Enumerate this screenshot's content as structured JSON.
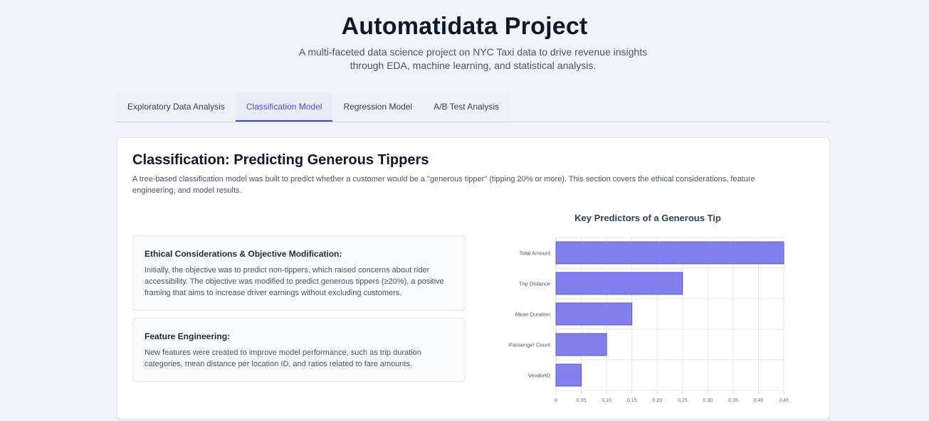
{
  "header": {
    "title": "Automatidata Project",
    "subtitle": "A multi-faceted data science project on NYC Taxi data to drive revenue insights through EDA, machine learning, and statistical analysis."
  },
  "tabs": [
    {
      "label": "Exploratory Data Analysis",
      "active": false
    },
    {
      "label": "Classification Model",
      "active": true
    },
    {
      "label": "Regression Model",
      "active": false
    },
    {
      "label": "A/B Test Analysis",
      "active": false
    }
  ],
  "section": {
    "title": "Classification: Predicting Generous Tippers",
    "description": "A tree-based classification model was built to predict whether a customer would be a \"generous tipper\" (tipping 20% or more). This section covers the ethical considerations, feature engineering, and model results.",
    "boxes": [
      {
        "heading": "Ethical Considerations & Objective Modification:",
        "text": "Initially, the objective was to predict non-tippers, which raised concerns about rider accessibility. The objective was modified to predict generous tippers (≥20%), a positive framing that aims to increase driver earnings without excluding customers."
      },
      {
        "heading": "Feature Engineering:",
        "text": "New features were created to improve model performance, such as trip duration categories, mean distance per location ID, and ratios related to fare amounts."
      }
    ]
  },
  "colors": {
    "accent": "#4f46e5",
    "bar_fill": "#8180ec",
    "bar_stroke": "#5b57d6"
  },
  "chart_data": {
    "type": "bar",
    "orientation": "horizontal",
    "title": "Key Predictors of a Generous Tip",
    "categories": [
      "Total Amount",
      "Trip Distance",
      "Mean Duration",
      "Passenger Count",
      "VendorID"
    ],
    "values": [
      0.45,
      0.25,
      0.15,
      0.1,
      0.05
    ],
    "xlim": [
      0,
      0.45
    ],
    "xticks": [
      "0",
      "0.05",
      "0.10",
      "0.15",
      "0.20",
      "0.25",
      "0.30",
      "0.35",
      "0.40",
      "0.45"
    ],
    "grid": true,
    "legend": "none"
  }
}
